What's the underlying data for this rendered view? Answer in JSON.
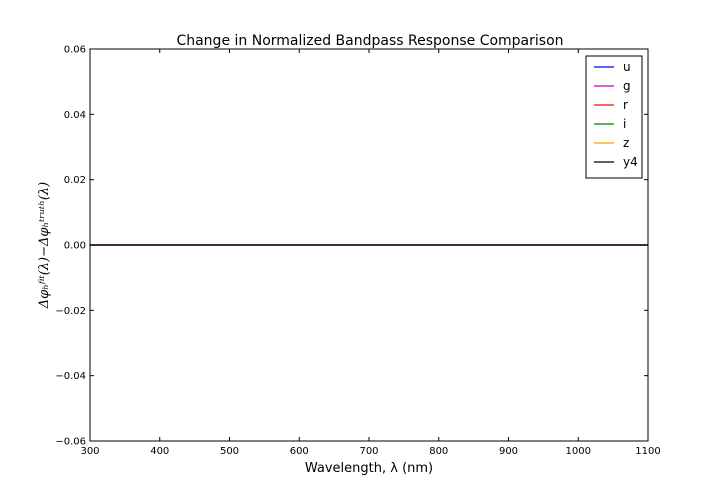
{
  "chart_data": {
    "type": "line",
    "title": "Change in Normalized Bandpass Response Comparison",
    "xlabel": "Wavelength, λ (nm)",
    "ylabel": "Δφₕᶠⁱᵗ(λ)−Δφₕᵗʳᵘᵗʰ(λ)",
    "xlim": [
      300,
      1100
    ],
    "ylim": [
      -0.06,
      0.06
    ],
    "x_ticks": [
      "300",
      "400",
      "500",
      "600",
      "700",
      "800",
      "900",
      "1000",
      "1100"
    ],
    "y_ticks": [
      "0.06",
      "0.04",
      "0.02",
      "0.00",
      "−0.02",
      "−0.04",
      "−0.06"
    ],
    "grid": false,
    "legend_position": "top-right",
    "series": [
      {
        "name": "u",
        "color": "#0000ff",
        "x": [
          300,
          1100
        ],
        "y": [
          0.0,
          0.0
        ]
      },
      {
        "name": "g",
        "color": "#bf00bf",
        "x": [
          300,
          1100
        ],
        "y": [
          0.0,
          0.0
        ]
      },
      {
        "name": "r",
        "color": "#ff0000",
        "x": [
          300,
          1100
        ],
        "y": [
          0.0,
          0.0
        ]
      },
      {
        "name": "i",
        "color": "#008000",
        "x": [
          300,
          1100
        ],
        "y": [
          0.0,
          0.0
        ]
      },
      {
        "name": "z",
        "color": "#ffa500",
        "x": [
          300,
          1100
        ],
        "y": [
          0.0,
          0.0
        ]
      },
      {
        "name": "y4",
        "color": "#000000",
        "x": [
          300,
          1100
        ],
        "y": [
          0.0,
          0.0
        ]
      }
    ]
  }
}
